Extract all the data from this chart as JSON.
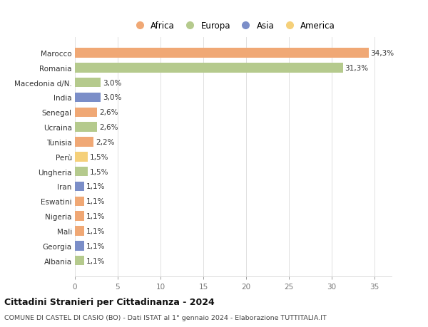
{
  "countries": [
    "Albania",
    "Georgia",
    "Mali",
    "Nigeria",
    "Eswatini",
    "Iran",
    "Ungheria",
    "Perù",
    "Tunisia",
    "Ucraina",
    "Senegal",
    "India",
    "Macedonia d/N.",
    "Romania",
    "Marocco"
  ],
  "values": [
    1.1,
    1.1,
    1.1,
    1.1,
    1.1,
    1.1,
    1.5,
    1.5,
    2.2,
    2.6,
    2.6,
    3.0,
    3.0,
    31.3,
    34.3
  ],
  "labels": [
    "1,1%",
    "1,1%",
    "1,1%",
    "1,1%",
    "1,1%",
    "1,1%",
    "1,5%",
    "1,5%",
    "2,2%",
    "2,6%",
    "2,6%",
    "3,0%",
    "3,0%",
    "31,3%",
    "34,3%"
  ],
  "colors": [
    "#b5ca8d",
    "#7b8ec8",
    "#f0a875",
    "#f0a875",
    "#f0a875",
    "#7b8ec8",
    "#b5ca8d",
    "#f5d07a",
    "#f0a875",
    "#b5ca8d",
    "#f0a875",
    "#7b8ec8",
    "#b5ca8d",
    "#b5ca8d",
    "#f0a875"
  ],
  "legend_items": [
    {
      "label": "Africa",
      "color": "#f0a875"
    },
    {
      "label": "Europa",
      "color": "#b5ca8d"
    },
    {
      "label": "Asia",
      "color": "#7b8ec8"
    },
    {
      "label": "America",
      "color": "#f5d07a"
    }
  ],
  "title": "Cittadini Stranieri per Cittadinanza - 2024",
  "subtitle": "COMUNE DI CASTEL DI CASIO (BO) - Dati ISTAT al 1° gennaio 2024 - Elaborazione TUTTITALIA.IT",
  "xlim": [
    0,
    37
  ],
  "xticks": [
    0,
    5,
    10,
    15,
    20,
    25,
    30,
    35
  ],
  "background_color": "#ffffff",
  "plot_bg_color": "#ffffff",
  "grid_color": "#e0e0e0"
}
